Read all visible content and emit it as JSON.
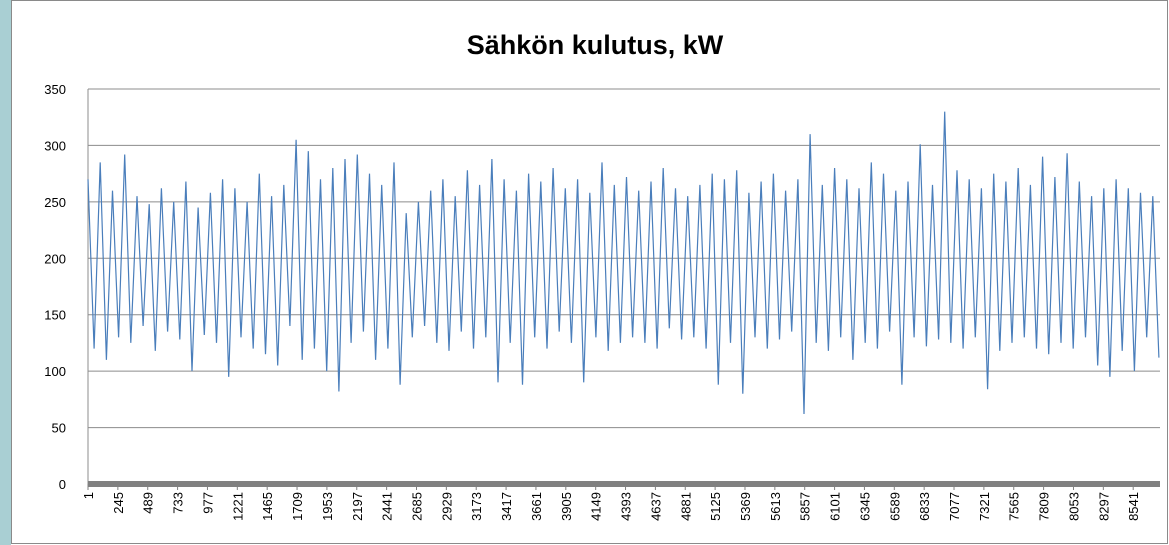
{
  "chart_data": {
    "type": "line",
    "title": "Sähkön kulutus, kW",
    "x": [
      1,
      51,
      101,
      151,
      201,
      251,
      301,
      351,
      401,
      451,
      501,
      551,
      601,
      651,
      701,
      751,
      801,
      851,
      901,
      951,
      1001,
      1051,
      1101,
      1151,
      1201,
      1251,
      1301,
      1351,
      1401,
      1451,
      1501,
      1551,
      1601,
      1651,
      1701,
      1751,
      1801,
      1851,
      1901,
      1951,
      2001,
      2051,
      2101,
      2151,
      2201,
      2251,
      2301,
      2351,
      2401,
      2451,
      2501,
      2551,
      2601,
      2651,
      2701,
      2751,
      2801,
      2851,
      2901,
      2951,
      3001,
      3051,
      3101,
      3151,
      3201,
      3251,
      3301,
      3351,
      3401,
      3451,
      3501,
      3551,
      3601,
      3651,
      3701,
      3751,
      3801,
      3851,
      3901,
      3951,
      4001,
      4051,
      4101,
      4151,
      4201,
      4251,
      4301,
      4351,
      4401,
      4451,
      4501,
      4551,
      4601,
      4651,
      4701,
      4751,
      4801,
      4851,
      4901,
      4951,
      5001,
      5051,
      5101,
      5151,
      5201,
      5251,
      5301,
      5351,
      5401,
      5451,
      5501,
      5551,
      5601,
      5651,
      5701,
      5751,
      5801,
      5851,
      5901,
      5951,
      6001,
      6051,
      6101,
      6151,
      6201,
      6251,
      6301,
      6351,
      6401,
      6451,
      6501,
      6551,
      6601,
      6651,
      6701,
      6751,
      6801,
      6851,
      6901,
      6951,
      7001,
      7051,
      7101,
      7151,
      7201,
      7251,
      7301,
      7351,
      7401,
      7451,
      7501,
      7551,
      7601,
      7651,
      7701,
      7751,
      7801,
      7851,
      7901,
      7951,
      8001,
      8051,
      8101,
      8151,
      8201,
      8251,
      8301,
      8351,
      8401,
      8451,
      8501,
      8551,
      8601,
      8651,
      8701,
      8751
    ],
    "series": [
      {
        "name": "Sähkön kulutus, kW",
        "color": "#4a7ebb",
        "values": [
          270,
          120,
          285,
          110,
          260,
          130,
          292,
          125,
          255,
          140,
          248,
          118,
          262,
          135,
          250,
          128,
          268,
          100,
          245,
          132,
          258,
          125,
          270,
          95,
          262,
          130,
          250,
          120,
          275,
          115,
          255,
          105,
          265,
          140,
          305,
          110,
          295,
          120,
          270,
          100,
          280,
          82,
          288,
          125,
          292,
          135,
          275,
          110,
          265,
          120,
          285,
          88,
          240,
          130,
          250,
          140,
          260,
          125,
          270,
          118,
          255,
          135,
          278,
          120,
          265,
          130,
          288,
          90,
          270,
          125,
          260,
          88,
          275,
          130,
          268,
          120,
          280,
          135,
          262,
          125,
          270,
          90,
          258,
          130,
          285,
          118,
          265,
          125,
          272,
          130,
          260,
          125,
          268,
          120,
          280,
          138,
          262,
          128,
          255,
          130,
          265,
          120,
          275,
          88,
          270,
          125,
          278,
          80,
          258,
          130,
          268,
          120,
          275,
          128,
          260,
          135,
          270,
          62,
          310,
          125,
          265,
          118,
          280,
          130,
          270,
          110,
          262,
          125,
          285,
          120,
          275,
          135,
          260,
          88,
          268,
          130,
          301,
          122,
          265,
          128,
          330,
          125,
          278,
          120,
          270,
          130,
          262,
          84,
          275,
          118,
          268,
          125,
          280,
          130,
          265,
          120,
          290,
          115,
          272,
          125,
          293,
          120,
          268,
          130,
          255,
          105,
          262,
          95,
          270,
          118,
          262,
          100,
          258,
          130,
          255,
          112
        ]
      }
    ],
    "xlim": [
      1,
      8760
    ],
    "xticks": [
      1,
      245,
      489,
      733,
      977,
      1221,
      1465,
      1709,
      1953,
      2197,
      2441,
      2685,
      2929,
      3173,
      3417,
      3661,
      3905,
      4149,
      4393,
      4637,
      4881,
      5125,
      5369,
      5613,
      5857,
      6101,
      6345,
      6589,
      6833,
      7077,
      7321,
      7565,
      7809,
      8053,
      8297,
      8541
    ],
    "ylim": [
      0,
      350
    ],
    "yticks": [
      0,
      50,
      100,
      150,
      200,
      250,
      300,
      350
    ],
    "grid": true
  }
}
